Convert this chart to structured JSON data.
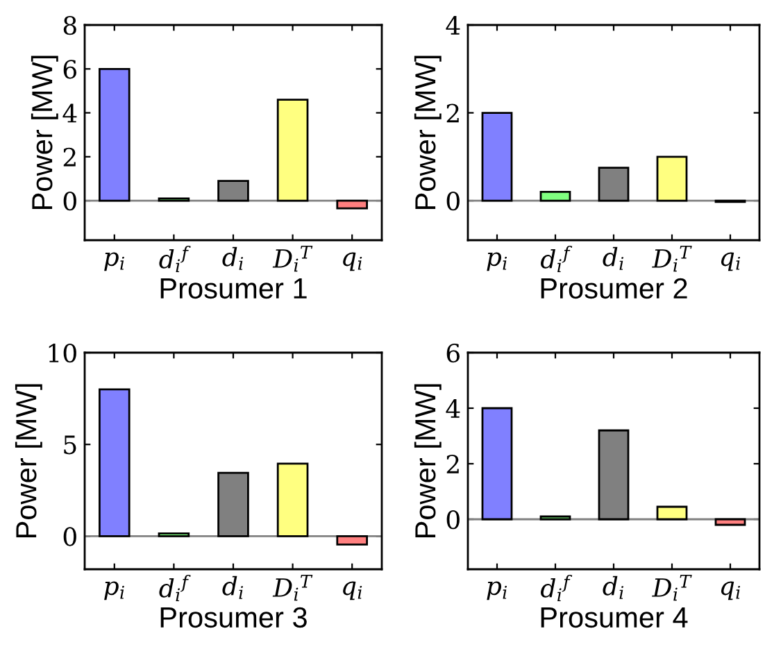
{
  "chart_data": [
    {
      "type": "bar",
      "xlabel": "Prosumer 1",
      "ylabel": "Power [MW]",
      "categories": [
        "p$_{i}$",
        "d$_{i}$$^{f}$",
        "d$_{i}$",
        "D$_{i}$$^{T}$",
        "q$_{i}$"
      ],
      "values": [
        6,
        0.1,
        0.9,
        4.6,
        -0.35
      ],
      "colors": [
        "#8080ff",
        "#80ff80",
        "#808080",
        "#ffff80",
        "#ff8080"
      ],
      "ylim": [
        -1.8,
        8
      ],
      "yticks": [
        0,
        2,
        4,
        6,
        8
      ],
      "ref_lines": [
        {
          "axis": "y",
          "value": 0,
          "color": "#808080"
        }
      ],
      "grid": false,
      "legend": false
    },
    {
      "type": "bar",
      "xlabel": "Prosumer 2",
      "ylabel": "Power [MW]",
      "categories": [
        "p$_{i}$",
        "d$_{i}$$^{f}$",
        "d$_{i}$",
        "D$_{i}$$^{T}$",
        "q$_{i}$"
      ],
      "values": [
        2,
        0.2,
        0.75,
        1.0,
        -0.03
      ],
      "colors": [
        "#8080ff",
        "#80ff80",
        "#808080",
        "#ffff80",
        "#ff8080"
      ],
      "ylim": [
        -0.9,
        4
      ],
      "yticks": [
        0,
        2,
        4
      ],
      "ref_lines": [
        {
          "axis": "y",
          "value": 0,
          "color": "#808080"
        }
      ],
      "grid": false,
      "legend": false
    },
    {
      "type": "bar",
      "xlabel": "Prosumer 3",
      "ylabel": "Power [MW]",
      "categories": [
        "p$_{i}$",
        "d$_{i}$$^{f}$",
        "d$_{i}$",
        "D$_{i}$$^{T}$",
        "q$_{i}$"
      ],
      "values": [
        8,
        0.15,
        3.45,
        3.95,
        -0.45
      ],
      "colors": [
        "#8080ff",
        "#80ff80",
        "#808080",
        "#ffff80",
        "#ff8080"
      ],
      "ylim": [
        -1.8,
        10
      ],
      "yticks": [
        0,
        5,
        10
      ],
      "ref_lines": [
        {
          "axis": "y",
          "value": 0,
          "color": "#808080"
        }
      ],
      "grid": false,
      "legend": false
    },
    {
      "type": "bar",
      "xlabel": "Prosumer 4",
      "ylabel": "Power [MW]",
      "categories": [
        "p$_{i}$",
        "d$_{i}$$^{f}$",
        "d$_{i}$",
        "D$_{i}$$^{T}$",
        "q$_{i}$"
      ],
      "values": [
        4,
        0.1,
        3.2,
        0.45,
        -0.2
      ],
      "colors": [
        "#8080ff",
        "#80ff80",
        "#808080",
        "#ffff80",
        "#ff8080"
      ],
      "ylim": [
        -1.8,
        6
      ],
      "yticks": [
        0,
        2,
        4,
        6
      ],
      "ref_lines": [
        {
          "axis": "y",
          "value": 0,
          "color": "#808080"
        }
      ],
      "grid": false,
      "legend": false
    }
  ]
}
